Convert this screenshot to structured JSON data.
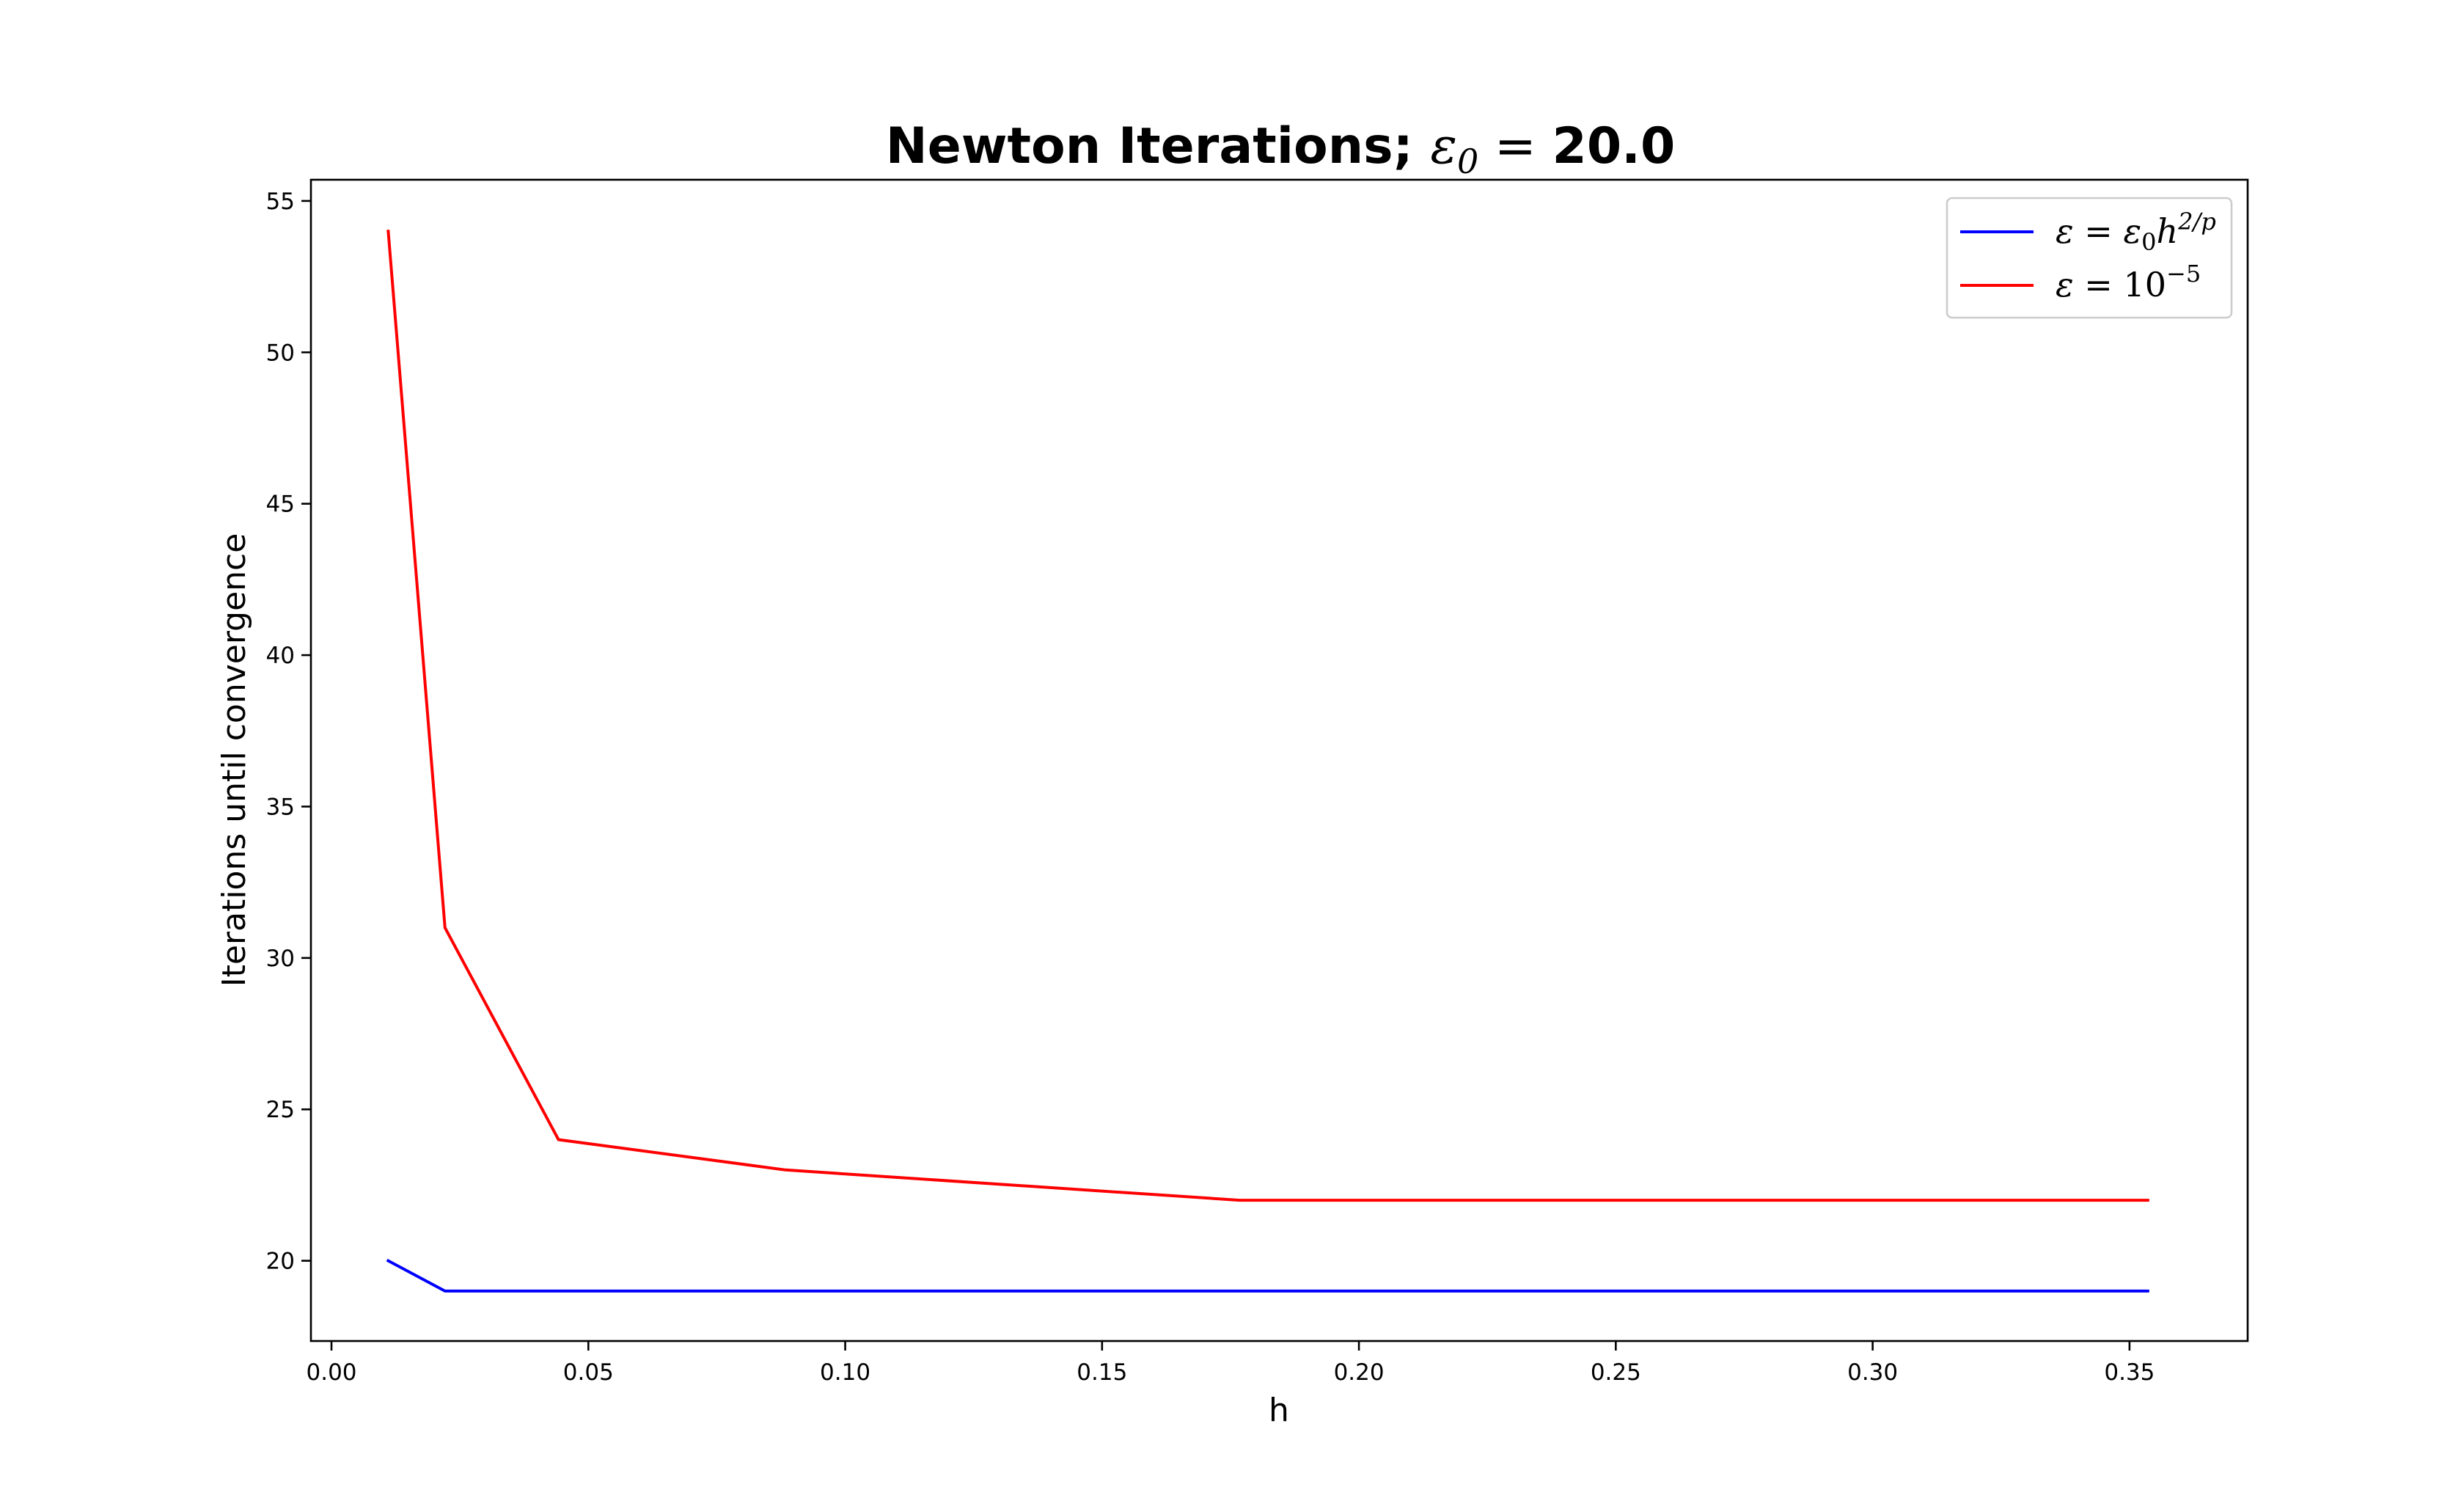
{
  "chart_data": {
    "type": "line",
    "title": {
      "prefix": "Newton Iterations; ",
      "symbol": "ε",
      "subscript": "0",
      "equals": " = ",
      "value": "20.0"
    },
    "xlabel": "h",
    "ylabel": "Iterations until convergence",
    "xlim": [
      -0.004,
      0.373
    ],
    "ylim": [
      17.35,
      55.7
    ],
    "xticks": [
      0.0,
      0.05,
      0.1,
      0.15,
      0.2,
      0.25,
      0.3,
      0.35
    ],
    "xtick_labels": [
      "0.00",
      "0.05",
      "0.10",
      "0.15",
      "0.20",
      "0.25",
      "0.30",
      "0.35"
    ],
    "yticks": [
      20,
      25,
      30,
      35,
      40,
      45,
      50,
      55
    ],
    "ytick_labels": [
      "20",
      "25",
      "30",
      "35",
      "40",
      "45",
      "50",
      "55"
    ],
    "grid": false,
    "legend_position": "top-right",
    "series": [
      {
        "legend": {
          "lhs": "ε",
          "eq": " = ",
          "base": "ε",
          "sub": "0",
          "var": "h",
          "sup": "2/p"
        },
        "color": "#0000ff",
        "x": [
          0.011049,
          0.022097,
          0.044194,
          0.088388,
          0.176777,
          0.353553
        ],
        "y": [
          20,
          19,
          19,
          19,
          19,
          19
        ]
      },
      {
        "legend": {
          "lhs": "ε",
          "eq": " = ",
          "base": "10",
          "sup": "−5"
        },
        "color": "#ff0000",
        "x": [
          0.011049,
          0.022097,
          0.044194,
          0.088388,
          0.176777,
          0.353553
        ],
        "y": [
          54,
          31,
          24,
          23,
          22,
          22
        ]
      }
    ]
  }
}
